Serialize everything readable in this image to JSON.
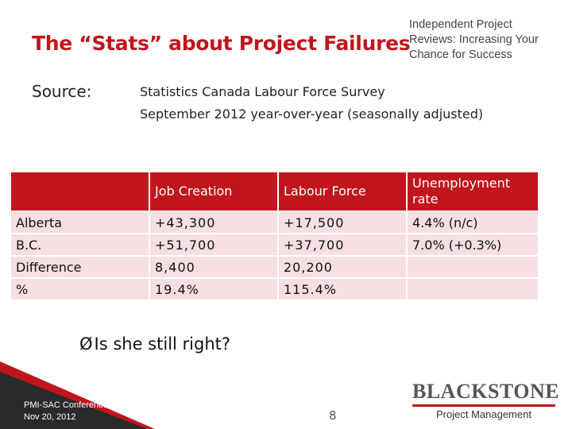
{
  "slide": {
    "title": "The “Stats” about Project Failures",
    "subtitle_lines": [
      "Independent Project",
      "Reviews: Increasing Your",
      "Chance for Success"
    ],
    "source_label": "Source:",
    "source_lines": [
      "Statistics Canada Labour Force Survey",
      "September 2012 year-over-year (seasonally adjusted)"
    ]
  },
  "table": {
    "headers": [
      "",
      "Job Creation",
      "Labour Force",
      "Unemployment rate"
    ],
    "rows": [
      [
        "Alberta",
        "+43,300",
        "+17,500",
        "4.4% (n/c)"
      ],
      [
        "B.C.",
        "+51,700",
        "+37,700",
        "7.0% (+0.3%)"
      ],
      [
        "Difference",
        "8,400",
        "20,200",
        ""
      ],
      [
        "%",
        "19.4%",
        "115.4%",
        ""
      ]
    ]
  },
  "bullet": {
    "marker": "Ø",
    "text": "Is she still right?"
  },
  "footer": {
    "conference_lines": [
      "PMI-SAC Conference",
      "Nov 20, 2012"
    ],
    "page_number": "8",
    "logo_text": "BLACKSTONE",
    "logo_subtext": "Project Management"
  },
  "colors": {
    "accent": "#c0151c",
    "cell_bg": "#f6dfe0",
    "footer_dark": "#2a2a2a"
  }
}
